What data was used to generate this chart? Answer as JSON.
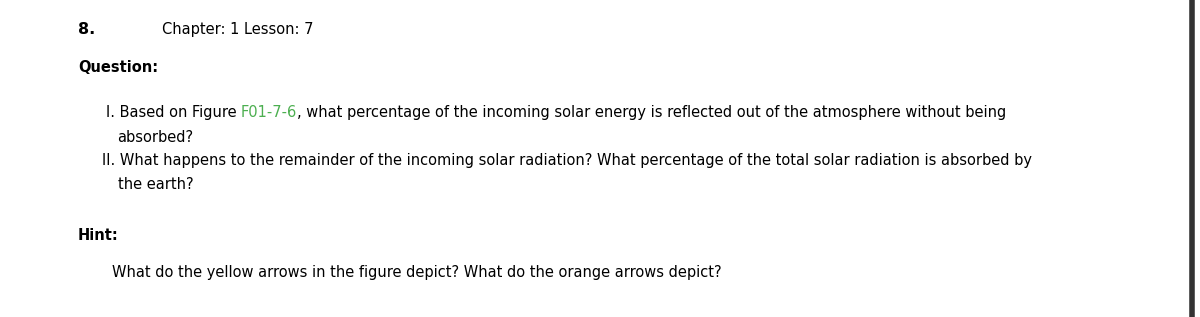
{
  "number": "8.",
  "chapter_lesson": "Chapter: 1 Lesson: 7",
  "question_label": "Question:",
  "hint_label": "Hint:",
  "line1_prefix": "I. Based on Figure ",
  "line1_link": "F01-7-6",
  "line1_suffix": ", what percentage of the incoming solar energy is reflected out of the atmosphere without being",
  "line1_cont": "absorbed?",
  "line2": "II. What happens to the remainder of the incoming solar radiation? What percentage of the total solar radiation is absorbed by",
  "line2_cont": "the earth?",
  "hint_text": "What do the yellow arrows in the figure depict? What do the orange arrows depict?",
  "link_color": "#4CAF50",
  "text_color": "#000000",
  "bg_color": "#ffffff",
  "font_size": 10.5,
  "bold_size": 10.5,
  "border_color": "#333333"
}
